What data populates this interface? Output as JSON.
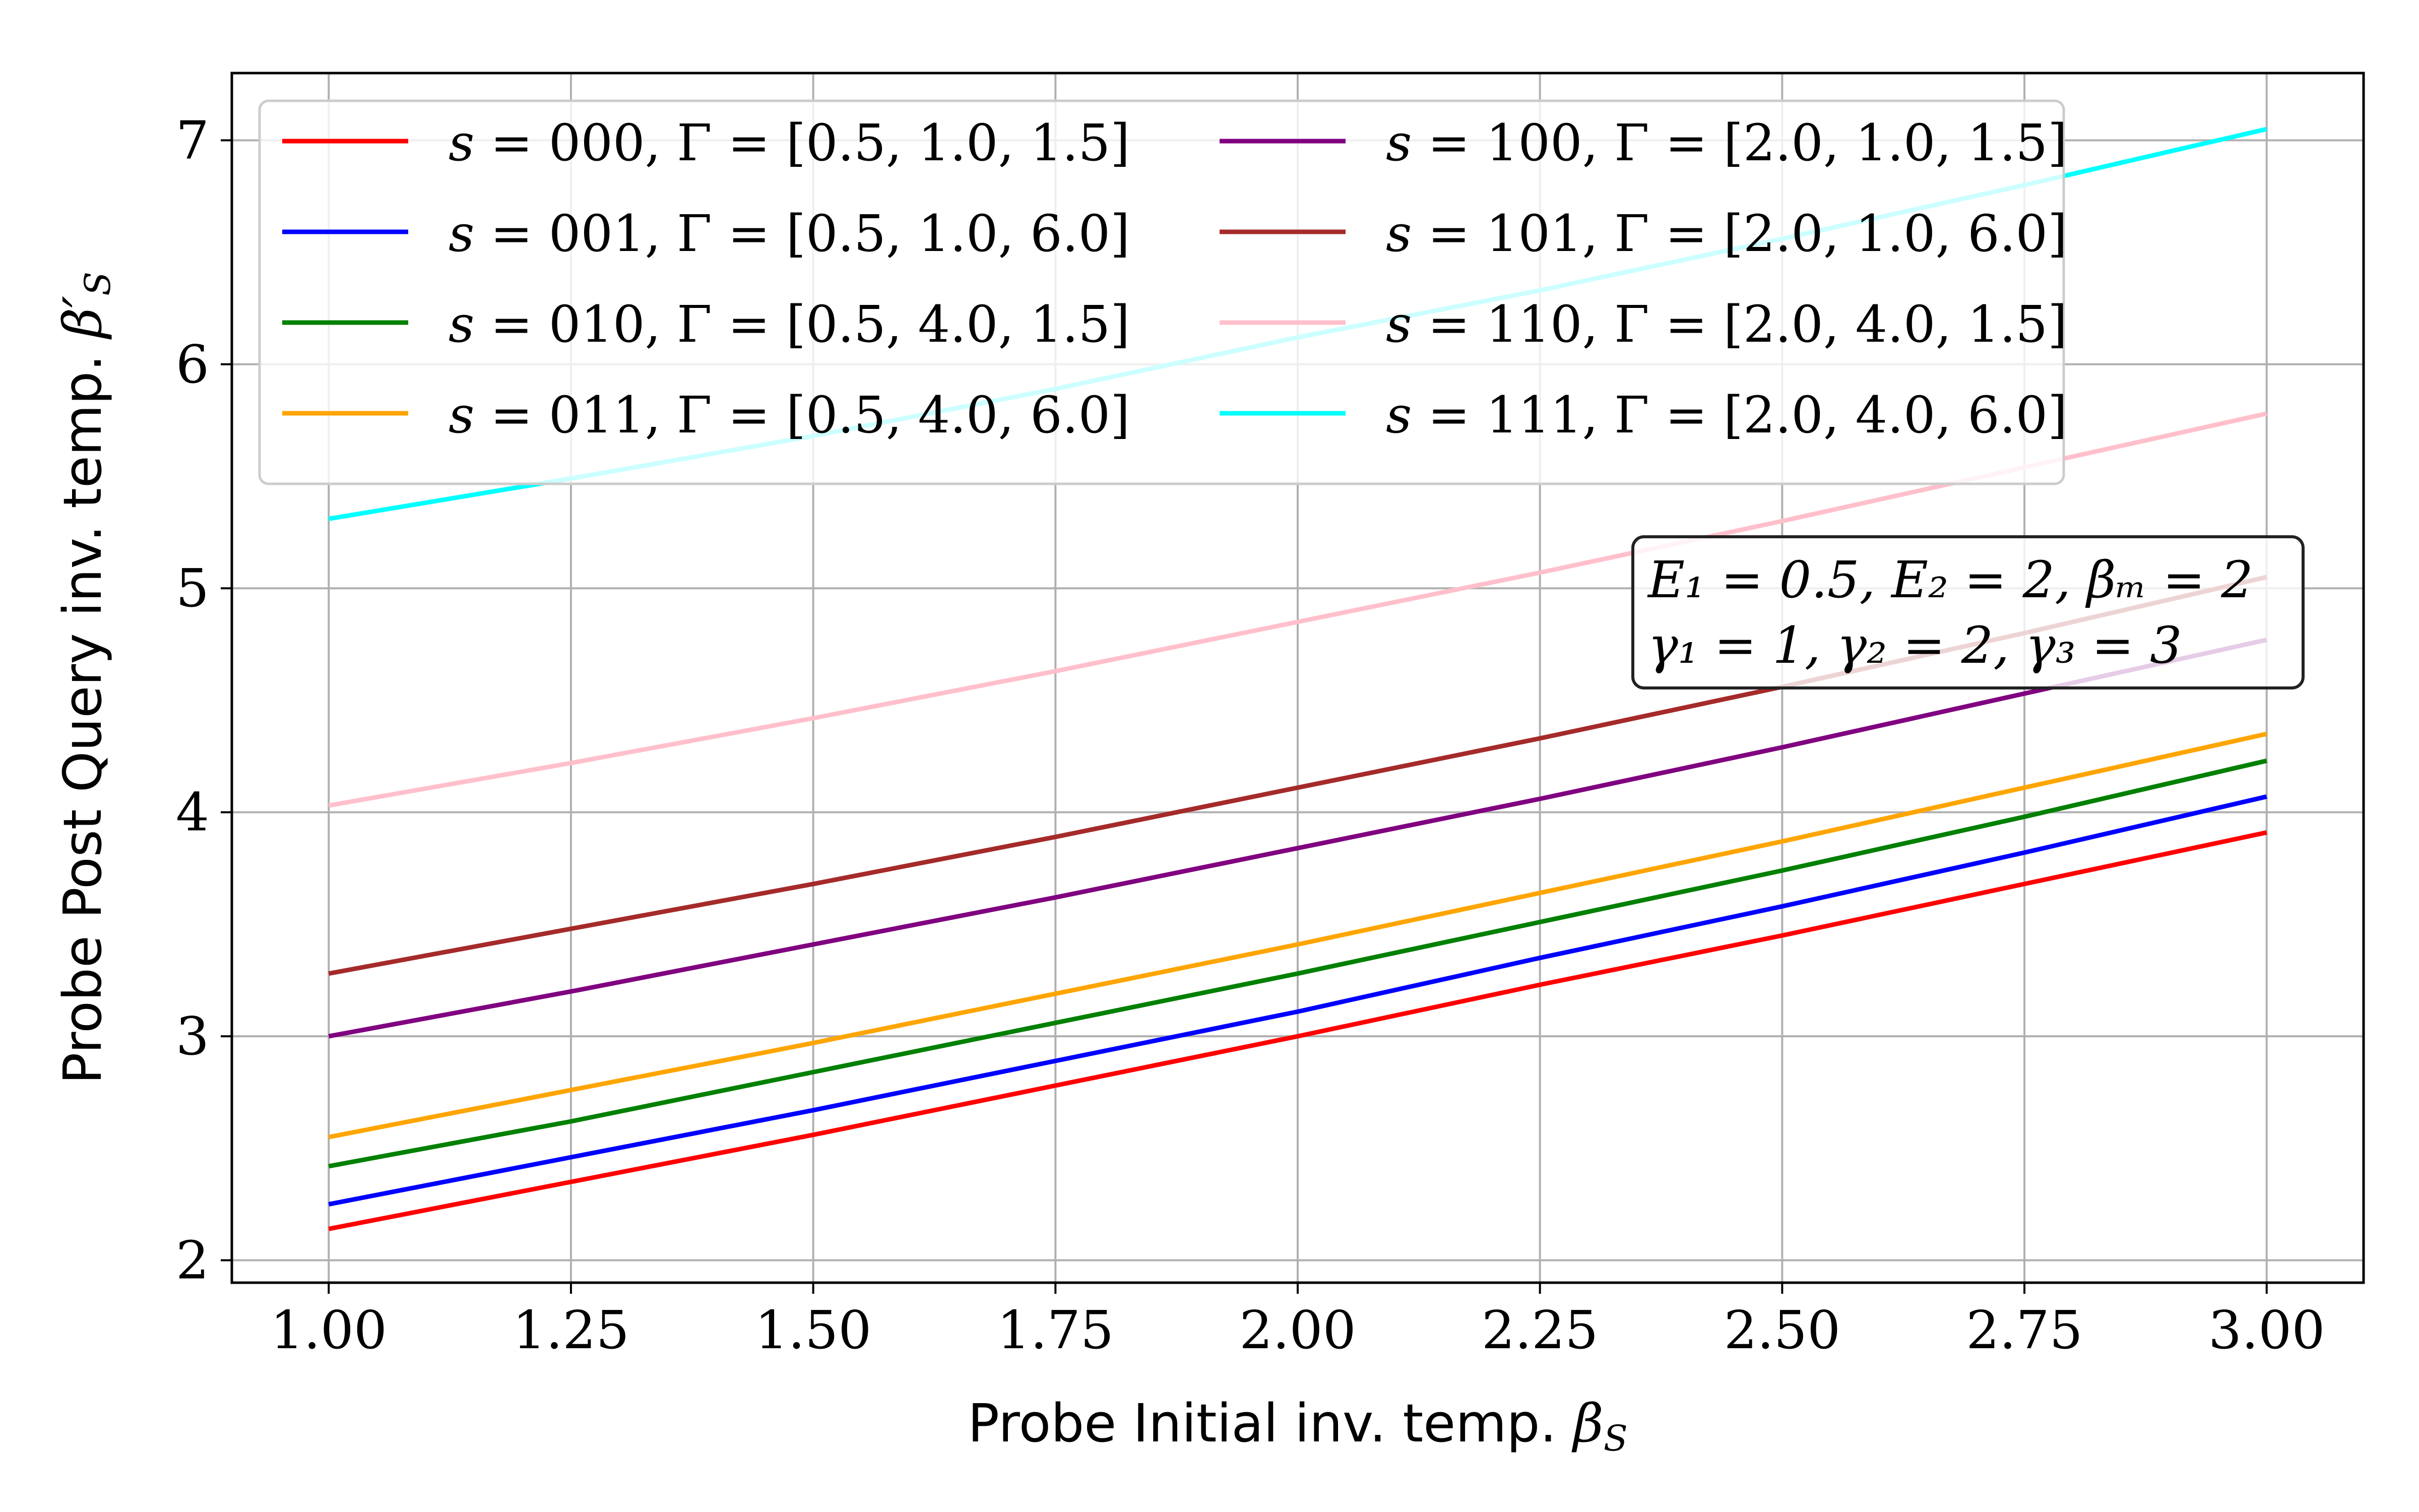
{
  "chart_data": {
    "type": "line",
    "xlabel": "Probe Initial inv. temp.",
    "xlabel_symbol": "β",
    "xlabel_sub": "S",
    "ylabel": "Probe Post Query inv. temp.",
    "ylabel_symbol": "β′",
    "ylabel_sub": "S",
    "xlim": [
      0.9,
      3.1
    ],
    "ylim": [
      1.9,
      7.3
    ],
    "x_ticks": [
      1.0,
      1.25,
      1.5,
      1.75,
      2.0,
      2.25,
      2.5,
      2.75,
      3.0
    ],
    "x_tick_labels": [
      "1.00",
      "1.25",
      "1.50",
      "1.75",
      "2.00",
      "2.25",
      "2.50",
      "2.75",
      "3.00"
    ],
    "y_ticks": [
      2,
      3,
      4,
      5,
      6,
      7
    ],
    "y_tick_labels": [
      "2",
      "3",
      "4",
      "5",
      "6",
      "7"
    ],
    "grid": true,
    "legend_position": "top-left",
    "x": [
      1.0,
      1.25,
      1.5,
      1.75,
      2.0,
      2.25,
      2.5,
      2.75,
      3.0
    ],
    "series": [
      {
        "name": "s = 000, Γ = [0.5, 1.0, 1.5]",
        "color": "#ff0000",
        "values": [
          2.14,
          2.35,
          2.56,
          2.78,
          3.0,
          3.23,
          3.45,
          3.68,
          3.91
        ]
      },
      {
        "name": "s = 001, Γ = [0.5, 1.0, 6.0]",
        "color": "#0000ff",
        "values": [
          2.25,
          2.46,
          2.67,
          2.89,
          3.11,
          3.35,
          3.58,
          3.82,
          4.07
        ]
      },
      {
        "name": "s = 010, Γ = [0.5, 4.0, 1.5]",
        "color": "#008000",
        "values": [
          2.42,
          2.62,
          2.84,
          3.06,
          3.28,
          3.51,
          3.74,
          3.98,
          4.23
        ]
      },
      {
        "name": "s = 011, Γ = [0.5, 4.0, 6.0]",
        "color": "#ffa500",
        "values": [
          2.55,
          2.76,
          2.97,
          3.19,
          3.41,
          3.64,
          3.87,
          4.11,
          4.35
        ]
      },
      {
        "name": "s = 100, Γ = [2.0, 1.0, 1.5]",
        "color": "#800080",
        "values": [
          3.0,
          3.2,
          3.41,
          3.62,
          3.84,
          4.06,
          4.29,
          4.53,
          4.77
        ]
      },
      {
        "name": "s = 101, Γ = [2.0, 1.0, 6.0]",
        "color": "#a52a2a",
        "values": [
          3.28,
          3.48,
          3.68,
          3.89,
          4.11,
          4.33,
          4.56,
          4.8,
          5.05
        ]
      },
      {
        "name": "s = 110, Γ = [2.0, 4.0, 1.5]",
        "color": "#ffc0cb",
        "values": [
          4.03,
          4.22,
          4.42,
          4.63,
          4.85,
          5.07,
          5.3,
          5.54,
          5.78
        ]
      },
      {
        "name": "s = 111, Γ = [2.0, 4.0, 6.0]",
        "color": "#00ffff",
        "values": [
          5.31,
          5.49,
          5.68,
          5.89,
          6.12,
          6.33,
          6.56,
          6.8,
          7.05
        ]
      }
    ],
    "legend_entries": [
      {
        "s": "000",
        "gamma": "[0.5, 1.0, 1.5]"
      },
      {
        "s": "001",
        "gamma": "[0.5, 1.0, 6.0]"
      },
      {
        "s": "010",
        "gamma": "[0.5, 4.0, 1.5]"
      },
      {
        "s": "011",
        "gamma": "[0.5, 4.0, 6.0]"
      },
      {
        "s": "100",
        "gamma": "[2.0, 1.0, 1.5]"
      },
      {
        "s": "101",
        "gamma": "[2.0, 1.0, 6.0]"
      },
      {
        "s": "110",
        "gamma": "[2.0, 4.0, 1.5]"
      },
      {
        "s": "111",
        "gamma": "[2.0, 4.0, 6.0]"
      }
    ],
    "annotation": {
      "line1": "E₁ = 0.5, E₂ = 2, βₘ = 2",
      "line2": "γ₁ = 1, γ₂ = 2, γ₃ = 3"
    }
  }
}
